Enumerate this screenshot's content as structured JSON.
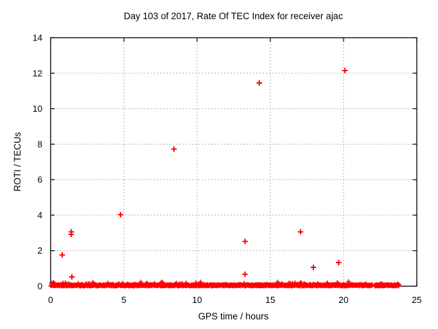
{
  "window": {
    "background_color": "#ffffff",
    "text_color": "#000000"
  },
  "chart_data": {
    "type": "scatter",
    "title": "Day 103 of 2017, Rate Of TEC Index for receiver ajac",
    "xlabel": "GPS time / hours",
    "ylabel": "ROTI / TECUs",
    "xlim": [
      0,
      25
    ],
    "ylim": [
      0,
      14
    ],
    "x_ticks": [
      0,
      5,
      10,
      15,
      20,
      25
    ],
    "y_ticks": [
      0,
      2,
      4,
      6,
      8,
      10,
      12,
      14
    ],
    "grid": true,
    "grid_style": "dotted",
    "grid_color": "#9a9a9a",
    "legend": "none",
    "marker": "plus",
    "marker_color": "#ff0000",
    "border_color": "#000000",
    "outlier_points": [
      {
        "x": 0.79,
        "y": 1.76
      },
      {
        "x": 1.4,
        "y": 2.92
      },
      {
        "x": 1.41,
        "y": 3.06
      },
      {
        "x": 1.45,
        "y": 0.52
      },
      {
        "x": 4.77,
        "y": 4.03
      },
      {
        "x": 8.42,
        "y": 7.72
      },
      {
        "x": 13.27,
        "y": 0.67
      },
      {
        "x": 13.28,
        "y": 2.52
      },
      {
        "x": 14.25,
        "y": 11.45
      },
      {
        "x": 17.06,
        "y": 3.06
      },
      {
        "x": 17.94,
        "y": 1.06
      },
      {
        "x": 19.67,
        "y": 1.33
      },
      {
        "x": 20.09,
        "y": 12.15
      }
    ],
    "baseline_band": {
      "description": "dense band of near-zero ROTI samples along y≈0",
      "x_start": 0.0,
      "x_end": 23.79,
      "gap_x": [
        22.0,
        22.12
      ],
      "y_min": 0.0,
      "y_max": 0.27,
      "n_points": 1600,
      "seed": 103
    }
  }
}
